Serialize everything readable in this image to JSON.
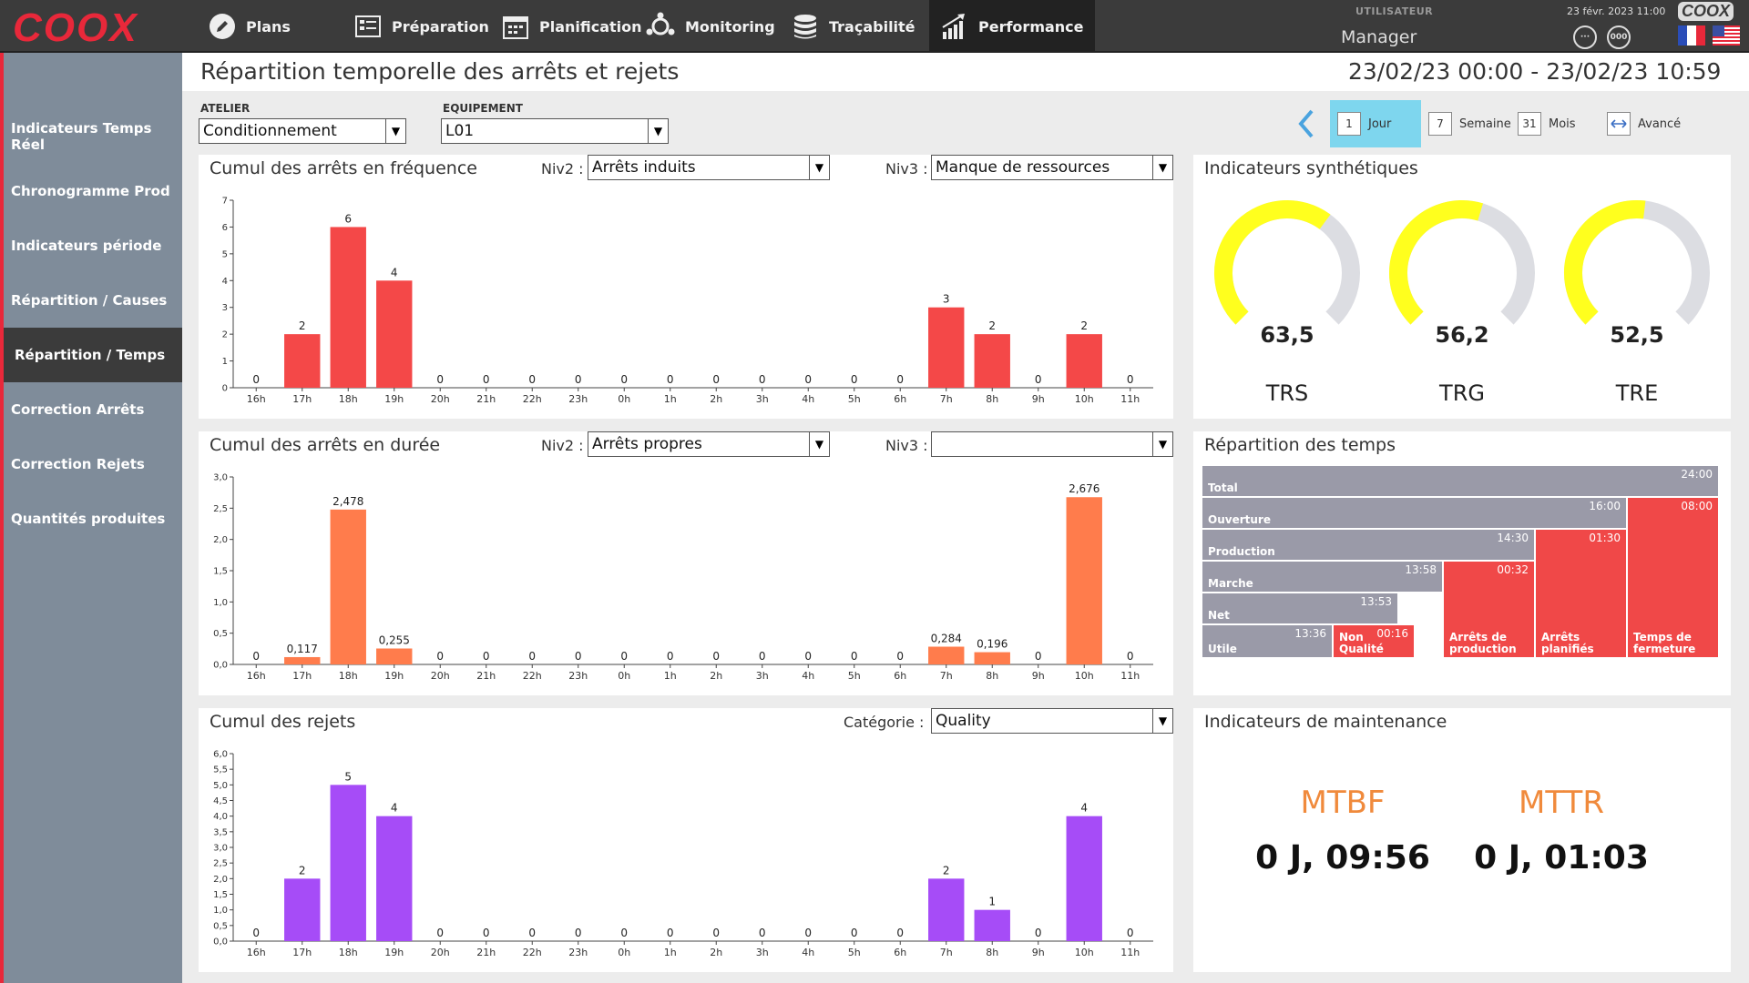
{
  "app": {
    "logo": "COOX",
    "logo_small": "COOX"
  },
  "nav": {
    "plans": "Plans",
    "preparation": "Préparation",
    "planification": "Planification",
    "monitoring": "Monitoring",
    "tracabilite": "Traçabilité",
    "performance": "Performance"
  },
  "user": {
    "label": "UTILISATEUR",
    "name": "Manager",
    "datetime": "23 févr. 2023 11:00",
    "icon1": "···",
    "icon2": "000"
  },
  "sidebar": {
    "items": [
      "Indicateurs Temps Réel",
      "Chronogramme Prod",
      "Indicateurs période",
      "Répartition / Causes",
      "Répartition / Temps",
      "Correction Arrêts",
      "Correction Rejets",
      "Quantités produites"
    ],
    "active_index": 4
  },
  "page": {
    "title": "Répartition temporelle des arrêts et rejets",
    "daterange": "23/02/23 00:00 - 23/02/23 10:59"
  },
  "filters": {
    "atelier_label": "ATELIER",
    "atelier_value": "Conditionnement",
    "equipement_label": "EQUIPEMENT",
    "equipement_value": "L01"
  },
  "period": {
    "jour_num": "1",
    "jour": "Jour",
    "semaine_num": "7",
    "semaine": "Semaine",
    "mois_num": "31",
    "mois": "Mois",
    "avance": "Avancé",
    "active": "Jour"
  },
  "panel1": {
    "title": "Cumul des arrêts en fréquence",
    "niv2_label": "Niv2 :",
    "niv2_value": "Arrêts induits",
    "niv3_label": "Niv3 :",
    "niv3_value": "Manque de ressources"
  },
  "panel2": {
    "title": "Cumul des arrêts en durée",
    "niv2_label": "Niv2 :",
    "niv2_value": "Arrêts propres",
    "niv3_label": "Niv3 :",
    "niv3_value": ""
  },
  "panel3": {
    "title": "Cumul des rejets",
    "cat_label": "Catégorie :",
    "cat_value": "Quality"
  },
  "indicators": {
    "title": "Indicateurs synthétiques",
    "gauges": [
      {
        "label": "TRS",
        "value": "63,5"
      },
      {
        "label": "TRG",
        "value": "56,2"
      },
      {
        "label": "TRE",
        "value": "52,5"
      }
    ]
  },
  "repartition": {
    "title": "Répartition des temps",
    "total": {
      "label": "Total",
      "value": "24:00"
    },
    "ouverture": {
      "label": "Ouverture",
      "value": "16:00"
    },
    "fermeture": {
      "label": "Temps de fermeture",
      "value": "08:00"
    },
    "production": {
      "label": "Production",
      "value": "14:30"
    },
    "planifies": {
      "label": "Arrêts planifiés",
      "value": "01:30"
    },
    "marche": {
      "label": "Marche",
      "value": "13:58"
    },
    "arrets_prod": {
      "label": "Arrêts de production",
      "value": "00:32"
    },
    "net": {
      "label": "Net",
      "value": "13:53"
    },
    "utile": {
      "label": "Utile",
      "value": "13:36"
    },
    "nonqualite": {
      "label": "Non Qualité",
      "value": "00:16"
    }
  },
  "maintenance": {
    "title": "Indicateurs de maintenance",
    "mtbf_label": "MTBF",
    "mtbf_value": "0 J, 09:56",
    "mttr_label": "MTTR",
    "mttr_value": "0 J, 01:03"
  },
  "colors": {
    "red": "#f44848",
    "orange": "#ff7c4c",
    "purple": "#a64cf7",
    "gray": "#9a9aa8",
    "redblock": "#f04848",
    "yellow": "#ffff1e"
  },
  "chart_data": [
    {
      "type": "bar",
      "title": "Cumul des arrêts en fréquence",
      "categories": [
        "16h",
        "17h",
        "18h",
        "19h",
        "20h",
        "21h",
        "22h",
        "23h",
        "0h",
        "1h",
        "2h",
        "3h",
        "4h",
        "5h",
        "6h",
        "7h",
        "8h",
        "9h",
        "10h",
        "11h"
      ],
      "values": [
        0,
        2,
        6,
        4,
        0,
        0,
        0,
        0,
        0,
        0,
        0,
        0,
        0,
        0,
        0,
        3,
        2,
        0,
        2,
        0
      ],
      "labels": [
        "0",
        "2",
        "6",
        "4",
        "0",
        "0",
        "0",
        "0",
        "0",
        "0",
        "0",
        "0",
        "0",
        "0",
        "0",
        "3",
        "2",
        "0",
        "2",
        "0"
      ],
      "yticks": [
        "0",
        "1",
        "2",
        "3",
        "4",
        "5",
        "6",
        "7"
      ],
      "ylim": [
        0,
        7
      ]
    },
    {
      "type": "bar",
      "title": "Cumul des arrêts en durée",
      "categories": [
        "16h",
        "17h",
        "18h",
        "19h",
        "20h",
        "21h",
        "22h",
        "23h",
        "0h",
        "1h",
        "2h",
        "3h",
        "4h",
        "5h",
        "6h",
        "7h",
        "8h",
        "9h",
        "10h",
        "11h"
      ],
      "values": [
        0,
        0.117,
        2.478,
        0.255,
        0,
        0,
        0,
        0,
        0,
        0,
        0,
        0,
        0,
        0,
        0,
        0.284,
        0.196,
        0,
        2.676,
        0
      ],
      "labels": [
        "0",
        "0,117",
        "2,478",
        "0,255",
        "0",
        "0",
        "0",
        "0",
        "0",
        "0",
        "0",
        "0",
        "0",
        "0",
        "0",
        "0,284",
        "0,196",
        "0",
        "2,676",
        "0"
      ],
      "yticks": [
        "0,0",
        "0,5",
        "1,0",
        "1,5",
        "2,0",
        "2,5",
        "3,0"
      ],
      "ylim": [
        0,
        3
      ]
    },
    {
      "type": "bar",
      "title": "Cumul des rejets",
      "categories": [
        "16h",
        "17h",
        "18h",
        "19h",
        "20h",
        "21h",
        "22h",
        "23h",
        "0h",
        "1h",
        "2h",
        "3h",
        "4h",
        "5h",
        "6h",
        "7h",
        "8h",
        "9h",
        "10h",
        "11h"
      ],
      "values": [
        0,
        2,
        5,
        4,
        0,
        0,
        0,
        0,
        0,
        0,
        0,
        0,
        0,
        0,
        0,
        2,
        1,
        0,
        4,
        0
      ],
      "labels": [
        "0",
        "2",
        "5",
        "4",
        "0",
        "0",
        "0",
        "0",
        "0",
        "0",
        "0",
        "0",
        "0",
        "0",
        "0",
        "2",
        "1",
        "0",
        "4",
        "0"
      ],
      "yticks": [
        "0,0",
        "0,5",
        "1,0",
        "1,5",
        "2,0",
        "2,5",
        "3,0",
        "3,5",
        "4,0",
        "4,5",
        "5,0",
        "5,5",
        "6,0"
      ],
      "ylim": [
        0,
        6
      ]
    }
  ]
}
